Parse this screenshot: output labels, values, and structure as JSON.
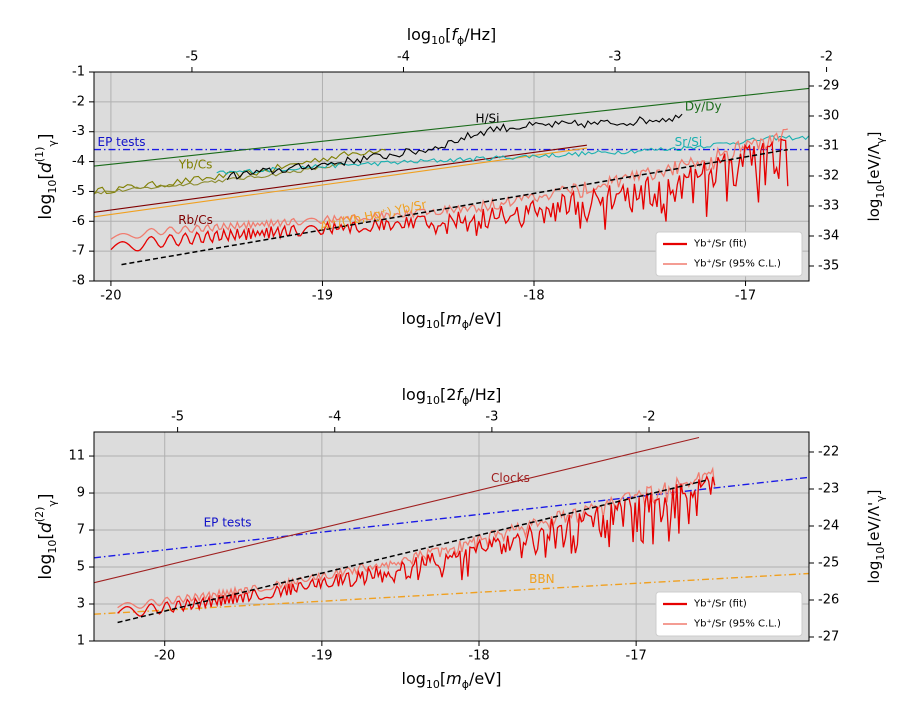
{
  "chart_data": [
    {
      "type": "line",
      "panel": "top",
      "x_range": [
        -20.08,
        -16.7
      ],
      "y_range": [
        -8,
        -1
      ],
      "xlabel": "log10[m_phi/eV]",
      "ylabel": "log10[d_gamma^(1)]",
      "top_xlabel": "log10[f_phi/Hz]",
      "right_ylabel": "log10[eV/Lambda_gamma]",
      "x_ticks": [
        -20,
        -19,
        -18,
        -17
      ],
      "x_tick_labels": [
        "-20",
        "-19",
        "-18",
        "-17"
      ],
      "y_ticks": [
        -8,
        -7,
        -6,
        -5,
        -4,
        -3,
        -2,
        -1
      ],
      "y_tick_labels": [
        "-8",
        "-7",
        "-6",
        "-5",
        "-4",
        "-3",
        "-2",
        "-1"
      ],
      "top_ticks": [
        -5,
        -4,
        -3,
        -2
      ],
      "top_tick_labels": [
        "-5",
        "-4",
        "-3",
        "-2"
      ],
      "right_ticks": [
        -35,
        -34,
        -33,
        -32,
        -31,
        -30,
        -29
      ],
      "right_tick_labels": [
        "-35",
        "-34",
        "-33",
        "-32",
        "-31",
        "-30",
        "-29"
      ],
      "grid": true,
      "legend_position": "lower-right",
      "legend": [
        {
          "label": "Yb⁺/Sr (fit)",
          "color": "#e60000"
        },
        {
          "label": "Yb⁺/Sr (95% C.L.)",
          "color": "#f07d70"
        }
      ],
      "annotations": [
        {
          "text": "EP tests",
          "x": -19.95,
          "y": -3.35,
          "color": "#1010c8"
        },
        {
          "text": "Yb/Cs",
          "x": -19.6,
          "y": -4.1,
          "color": "#7f7f00"
        },
        {
          "text": "Rb/Cs",
          "x": -19.6,
          "y": -5.95,
          "color": "#800000"
        },
        {
          "text": "H/Si",
          "x": -18.22,
          "y": -2.55,
          "color": "#000000"
        },
        {
          "text": "Dy/Dy",
          "x": -17.2,
          "y": -2.15,
          "color": "#1a6b1a"
        },
        {
          "text": "Sr/Si",
          "x": -17.27,
          "y": -3.35,
          "color": "#1ab0b0"
        },
        {
          "text": "Al⁺/(Yb,Hg⁺),Yb/Sr",
          "x": -18.76,
          "y": -5.8,
          "color": "#f0a020",
          "rotate": -12
        }
      ],
      "series": [
        {
          "name": "EP tests",
          "style": "dashdot",
          "color": "#1a1ae6",
          "x": [
            -20.08,
            -16.7
          ],
          "y": [
            -3.6,
            -3.6
          ]
        },
        {
          "name": "Dy/Dy",
          "style": "solid",
          "color": "#1a6b1a",
          "x": [
            -20.08,
            -16.7
          ],
          "y": [
            -4.15,
            -1.55
          ]
        },
        {
          "name": "Rb/Cs",
          "style": "solid",
          "color": "#800000",
          "x": [
            -20.08,
            -17.75
          ],
          "y": [
            -5.7,
            -3.45
          ]
        },
        {
          "name": "Al+/(Yb,Hg+),Yb/Sr",
          "style": "solid",
          "color": "#f0a020",
          "x": [
            -20.08,
            -17.75
          ],
          "y": [
            -5.85,
            -3.55
          ]
        },
        {
          "name": "Yb/Cs",
          "style": "jagged",
          "color": "#7f7f00",
          "x": [
            -20.08,
            -19.7,
            -19.3,
            -19.0,
            -18.7
          ],
          "y": [
            -5.0,
            -4.7,
            -4.35,
            -3.9,
            -3.55
          ],
          "noise": 0.12,
          "steps": 70
        },
        {
          "name": "Yb/Cs (thin)",
          "style": "jagged",
          "color": "#8c8c30",
          "x": [
            -20.08,
            -19.7,
            -19.3,
            -18.9
          ],
          "y": [
            -5.05,
            -4.8,
            -4.5,
            -4.1
          ],
          "noise": 0.06,
          "steps": 70
        },
        {
          "name": "Sr/Si",
          "style": "jagged",
          "color": "#1ab0b0",
          "x": [
            -19.5,
            -19.0,
            -18.4,
            -17.8,
            -17.3,
            -16.85,
            -16.7
          ],
          "y": [
            -4.4,
            -4.15,
            -3.95,
            -3.75,
            -3.55,
            -3.2,
            -3.2
          ],
          "noise": 0.08,
          "steps": 180
        },
        {
          "name": "H/Si",
          "style": "jagged",
          "color": "#000000",
          "x": [
            -19.45,
            -19.0,
            -18.5,
            -18.2,
            -18.0,
            -17.6,
            -17.3
          ],
          "y": [
            -4.5,
            -4.1,
            -3.6,
            -2.9,
            -2.8,
            -2.7,
            -2.5
          ],
          "noise": 0.14,
          "steps": 140
        },
        {
          "name": "Yb+/Sr (95% C.L.)",
          "style": "oscillating",
          "color": "#f07d70",
          "x": [
            -20.0,
            -19.8,
            -19.5,
            -19.2,
            -18.8,
            -18.5,
            -18.2,
            -17.9,
            -17.6,
            -17.2,
            -16.8
          ],
          "y": [
            -6.6,
            -6.35,
            -6.2,
            -6.05,
            -5.85,
            -5.7,
            -5.4,
            -5.0,
            -4.55,
            -3.85,
            -2.8
          ],
          "amp": 0.12,
          "spike": 0.5,
          "spike_start": -18.4,
          "steps": 300
        },
        {
          "name": "Yb+/Sr (fit)",
          "style": "oscillating",
          "color": "#e60000",
          "x": [
            -20.0,
            -19.8,
            -19.5,
            -19.2,
            -18.8,
            -18.5,
            -18.2,
            -17.9,
            -17.6,
            -17.2,
            -16.8
          ],
          "y": [
            -6.95,
            -6.7,
            -6.5,
            -6.35,
            -6.15,
            -6.0,
            -5.75,
            -5.35,
            -4.9,
            -4.2,
            -3.1
          ],
          "amp": 0.2,
          "spike": 1.6,
          "spike_start": -18.5,
          "steps": 300
        },
        {
          "name": "Yb+/Sr (fit) trend",
          "style": "dashed",
          "color": "#000000",
          "x": [
            -19.95,
            -16.8
          ],
          "y": [
            -7.45,
            -3.6
          ]
        }
      ]
    },
    {
      "type": "line",
      "panel": "bottom",
      "x_range": [
        -20.45,
        -15.9
      ],
      "y_range": [
        1,
        12.3
      ],
      "xlabel": "log10[m_phi/eV]",
      "ylabel": "log10[d_gamma^(2)]",
      "top_xlabel": "log10[2f_phi/Hz]",
      "right_ylabel": "log10[eV/Lambda'_gamma]",
      "x_ticks": [
        -20,
        -19,
        -18,
        -17
      ],
      "x_tick_labels": [
        "-20",
        "-19",
        "-18",
        "-17"
      ],
      "y_ticks": [
        1,
        3,
        5,
        7,
        9,
        11
      ],
      "y_tick_labels": [
        "1",
        "3",
        "5",
        "7",
        "9",
        "11"
      ],
      "top_ticks": [
        -5,
        -4,
        -3,
        -2
      ],
      "top_tick_labels": [
        "-5",
        "-4",
        "-3",
        "-2"
      ],
      "right_ticks": [
        -27,
        -26,
        -25,
        -24,
        -23,
        -22
      ],
      "right_tick_labels": [
        "-27",
        "-26",
        "-25",
        "-24",
        "-23",
        "-22"
      ],
      "grid": true,
      "legend_position": "lower-right",
      "legend": [
        {
          "label": "Yb⁺/Sr (fit)",
          "color": "#e60000"
        },
        {
          "label": "Yb⁺/Sr (95% C.L.)",
          "color": "#f07d70"
        }
      ],
      "annotations": [
        {
          "text": "Clocks",
          "x": -17.8,
          "y": 9.8,
          "color": "#a02020"
        },
        {
          "text": "EP tests",
          "x": -19.6,
          "y": 7.4,
          "color": "#1010c8"
        },
        {
          "text": "BBN",
          "x": -17.6,
          "y": 4.35,
          "color": "#f0a020"
        }
      ],
      "series": [
        {
          "name": "BBN",
          "style": "dashdot",
          "color": "#f0a020",
          "x": [
            -20.45,
            -15.9
          ],
          "y": [
            2.45,
            4.65
          ]
        },
        {
          "name": "EP tests",
          "style": "dashdot",
          "color": "#1a1ae6",
          "x": [
            -20.45,
            -15.9
          ],
          "y": [
            5.5,
            9.85
          ]
        },
        {
          "name": "Clocks",
          "style": "solid",
          "color": "#a02020",
          "x": [
            -20.45,
            -16.6
          ],
          "y": [
            4.15,
            12.0
          ]
        },
        {
          "name": "Yb+/Sr (95% C.L.)",
          "style": "oscillating",
          "color": "#f07d70",
          "x": [
            -20.3,
            -20.0,
            -19.6,
            -19.2,
            -18.8,
            -18.4,
            -18.0,
            -17.6,
            -17.2,
            -16.8,
            -16.5
          ],
          "y": [
            2.8,
            3.15,
            3.6,
            4.15,
            4.85,
            5.6,
            6.55,
            7.55,
            8.5,
            9.45,
            10.2
          ],
          "amp": 0.2,
          "spike": 0.8,
          "spike_start": -18.8,
          "steps": 300
        },
        {
          "name": "Yb+/Sr (fit)",
          "style": "oscillating",
          "color": "#e60000",
          "x": [
            -20.3,
            -20.0,
            -19.6,
            -19.2,
            -18.8,
            -18.4,
            -18.0,
            -17.6,
            -17.2,
            -16.8,
            -16.5
          ],
          "y": [
            2.5,
            2.8,
            3.25,
            3.8,
            4.5,
            5.25,
            6.15,
            7.15,
            8.1,
            9.05,
            9.7
          ],
          "amp": 0.3,
          "spike": 2.6,
          "spike_start": -18.9,
          "steps": 300
        },
        {
          "name": "Yb+/Sr (fit) trend",
          "style": "dashed",
          "color": "#000000",
          "x": [
            -20.3,
            -16.55
          ],
          "y": [
            2.0,
            9.7
          ]
        }
      ]
    }
  ]
}
